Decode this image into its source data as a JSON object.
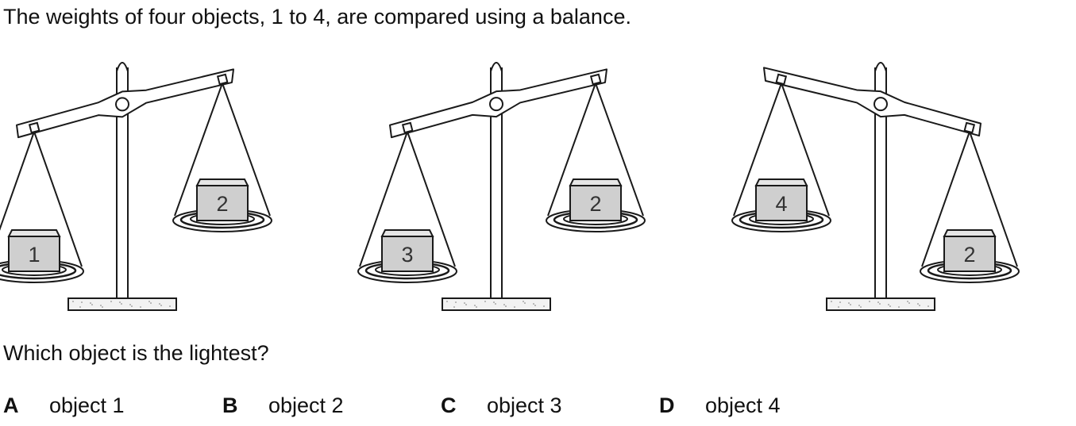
{
  "intro": "The weights of four objects, 1 to 4, are compared using a balance.",
  "question": "Which object is the lightest?",
  "colors": {
    "ink": "#1a1a1a",
    "box_fill": "#cfcfcf",
    "box_top": "#e6e6e6",
    "base_fill": "#f2f2f2"
  },
  "balances": [
    {
      "left_object": "1",
      "right_object": "2",
      "heavier_side": "left"
    },
    {
      "left_object": "3",
      "right_object": "2",
      "heavier_side": "left"
    },
    {
      "left_object": "4",
      "right_object": "2",
      "heavier_side": "right"
    }
  ],
  "options": [
    {
      "letter": "A",
      "text": "object 1"
    },
    {
      "letter": "B",
      "text": "object 2"
    },
    {
      "letter": "C",
      "text": "object 3"
    },
    {
      "letter": "D",
      "text": "object 4"
    }
  ]
}
